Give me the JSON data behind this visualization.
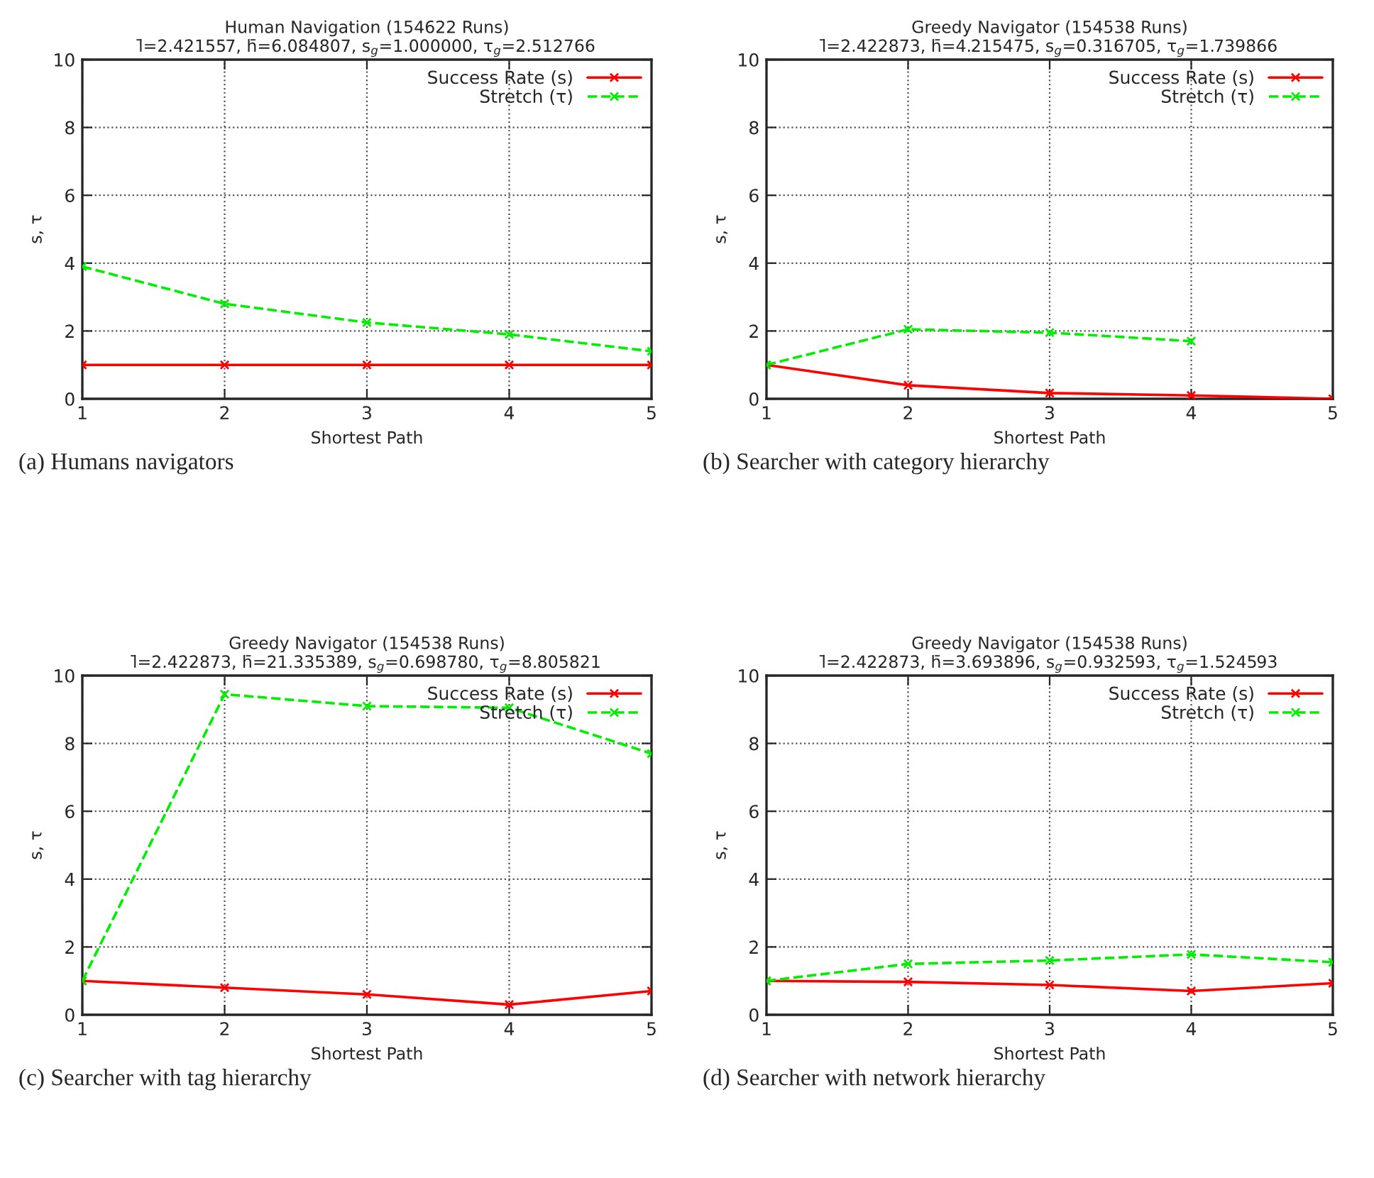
{
  "chart_data": [
    {
      "type": "line",
      "title": "Human Navigation (154622 Runs)",
      "subtitle": "l̄=2.421557, h̄=6.084807, s$_{g}$=1.000000, τ$_{g}$=2.512766",
      "xlabel": "Shortest Path",
      "ylabel": "s, τ",
      "x": [
        1,
        2,
        3,
        4,
        5
      ],
      "xlim": [
        1,
        5
      ],
      "xticks": [
        1,
        2,
        3,
        4,
        5
      ],
      "ylim": [
        0,
        10
      ],
      "yticks": [
        0,
        2,
        4,
        6,
        8,
        10
      ],
      "grid": true,
      "legend": "top right",
      "annotations": [
        "(a) Humans navigators"
      ],
      "series": [
        {
          "name": "Success Rate (s)",
          "color": "#ff0000",
          "line_style": "solid",
          "marker": "cross",
          "values": [
            1,
            1,
            1,
            1,
            1
          ]
        },
        {
          "name": "Stretch (τ)",
          "color": "#00ee00",
          "line_style": "dashed",
          "marker": "cross",
          "values": [
            3.9,
            2.8,
            2.25,
            1.9,
            1.4
          ]
        }
      ]
    },
    {
      "type": "line",
      "title": "Greedy Navigator (154538 Runs)",
      "subtitle": "l̄=2.422873, h̄=4.215475, s$_{g}$=0.316705, τ$_{g}$=1.739866",
      "xlabel": "Shortest Path",
      "ylabel": "s, τ",
      "x": [
        1,
        2,
        3,
        4,
        5
      ],
      "xlim": [
        1,
        5
      ],
      "xticks": [
        1,
        2,
        3,
        4,
        5
      ],
      "ylim": [
        0,
        10
      ],
      "yticks": [
        0,
        2,
        4,
        6,
        8,
        10
      ],
      "grid": true,
      "legend": "top right",
      "annotations": [
        "(b) Searcher with category hierarchy"
      ],
      "series": [
        {
          "name": "Success Rate (s)",
          "color": "#ff0000",
          "line_style": "solid",
          "marker": "cross",
          "values": [
            1,
            0.4,
            0.17,
            0.1,
            0.0
          ]
        },
        {
          "name": "Stretch (τ)",
          "color": "#00ee00",
          "line_style": "dashed",
          "marker": "cross",
          "values": [
            1,
            2.05,
            1.95,
            1.7,
            null
          ]
        }
      ]
    },
    {
      "type": "line",
      "title": "Greedy Navigator (154538 Runs)",
      "subtitle": "l̄=2.422873, h̄=21.335389, s$_{g}$=0.698780, τ$_{g}$=8.805821",
      "xlabel": "Shortest Path",
      "ylabel": "s, τ",
      "x": [
        1,
        2,
        3,
        4,
        5
      ],
      "xlim": [
        1,
        5
      ],
      "xticks": [
        1,
        2,
        3,
        4,
        5
      ],
      "ylim": [
        0,
        10
      ],
      "yticks": [
        0,
        2,
        4,
        6,
        8,
        10
      ],
      "grid": true,
      "legend": "top right",
      "annotations": [
        "(c) Searcher with tag hierarchy"
      ],
      "series": [
        {
          "name": "Success Rate (s)",
          "color": "#ff0000",
          "line_style": "solid",
          "marker": "cross",
          "values": [
            1,
            0.8,
            0.6,
            0.3,
            0.7
          ]
        },
        {
          "name": "Stretch (τ)",
          "color": "#00ee00",
          "line_style": "dashed",
          "marker": "cross",
          "values": [
            1,
            9.45,
            9.1,
            9.05,
            7.7
          ]
        }
      ]
    },
    {
      "type": "line",
      "title": "Greedy Navigator (154538 Runs)",
      "subtitle": "l̄=2.422873, h̄=3.693896, s$_{g}$=0.932593, τ$_{g}$=1.524593",
      "xlabel": "Shortest Path",
      "ylabel": "s, τ",
      "x": [
        1,
        2,
        3,
        4,
        5
      ],
      "xlim": [
        1,
        5
      ],
      "xticks": [
        1,
        2,
        3,
        4,
        5
      ],
      "ylim": [
        0,
        10
      ],
      "yticks": [
        0,
        2,
        4,
        6,
        8,
        10
      ],
      "grid": true,
      "legend": "top right",
      "annotations": [
        "(d) Searcher with network hierarchy"
      ],
      "series": [
        {
          "name": "Success Rate (s)",
          "color": "#ff0000",
          "line_style": "solid",
          "marker": "cross",
          "values": [
            1,
            0.97,
            0.88,
            0.7,
            0.93
          ]
        },
        {
          "name": "Stretch (τ)",
          "color": "#00ee00",
          "line_style": "dashed",
          "marker": "cross",
          "values": [
            1,
            1.5,
            1.6,
            1.78,
            1.55
          ]
        }
      ]
    }
  ]
}
